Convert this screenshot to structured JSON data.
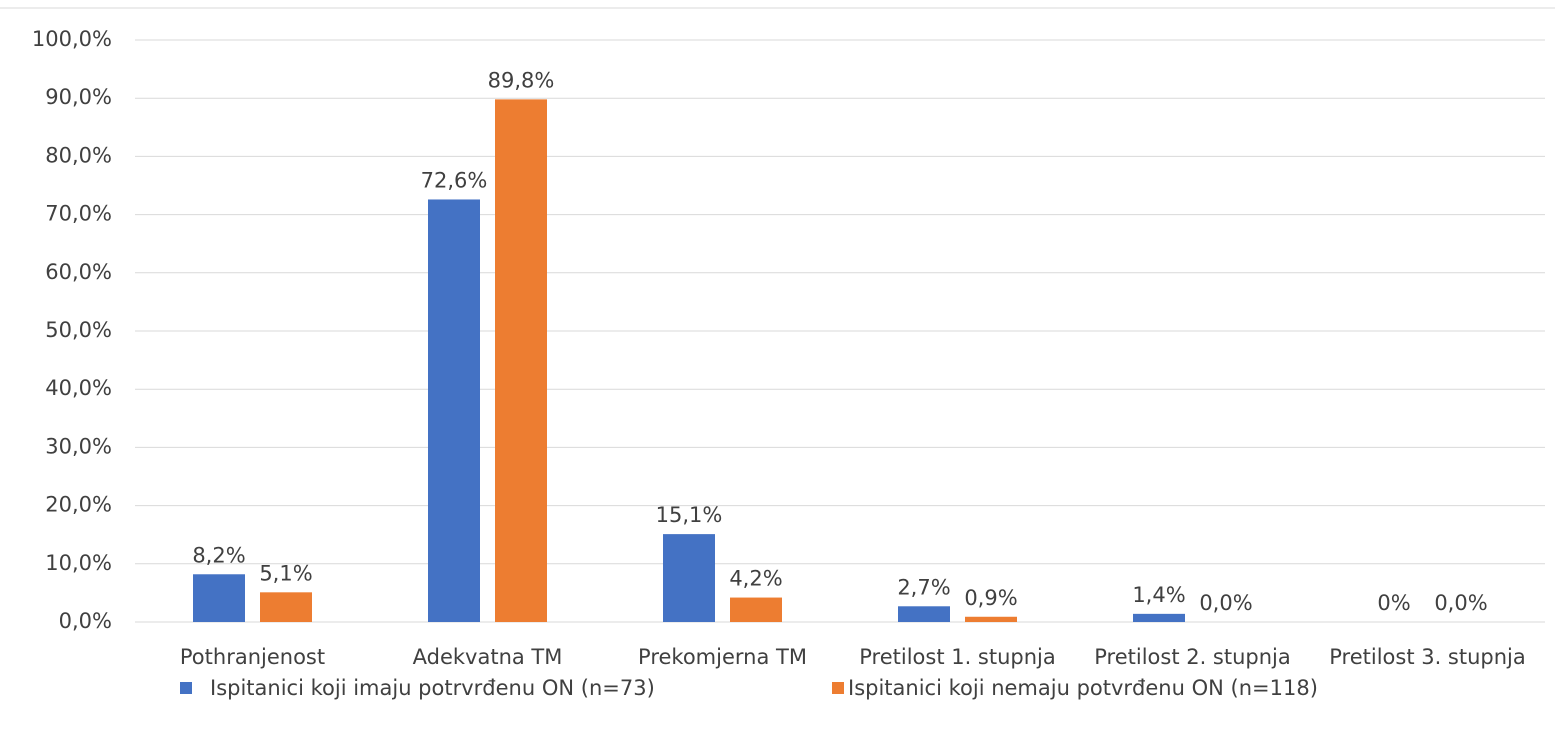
{
  "chart_data": {
    "type": "bar",
    "categories": [
      "Pothranjenost",
      "Adekvatna TM",
      "Prekomjerna TM",
      "Pretilost 1. stupnja",
      "Pretilost 2. stupnja",
      "Pretilost 3. stupnja"
    ],
    "series": [
      {
        "name": "Ispitanici koji imaju potrvrđenu ON (n=73)",
        "color": "#4472c4",
        "values": [
          8.2,
          72.6,
          15.1,
          2.7,
          1.4,
          0
        ],
        "value_labels": [
          "8,2%",
          "72,6%",
          "15,1%",
          "2,7%",
          "1,4%",
          "0%"
        ]
      },
      {
        "name": "Ispitanici koji nemaju potvrđenu ON (n=118)",
        "color": "#ed7d31",
        "values": [
          5.1,
          89.8,
          4.2,
          0.9,
          0,
          0
        ],
        "value_labels": [
          "5,1%",
          "89,8%",
          "4,2%",
          "0,9%",
          "0,0%",
          "0,0%"
        ]
      }
    ],
    "ylim": [
      0,
      100
    ],
    "yticks": [
      {
        "value": 0,
        "label": "0,0%"
      },
      {
        "value": 10,
        "label": "10,0%"
      },
      {
        "value": 20,
        "label": "20,0%"
      },
      {
        "value": 30,
        "label": "30,0%"
      },
      {
        "value": 40,
        "label": "40,0%"
      },
      {
        "value": 50,
        "label": "50,0%"
      },
      {
        "value": 60,
        "label": "60,0%"
      },
      {
        "value": 70,
        "label": "70,0%"
      },
      {
        "value": 80,
        "label": "80,0%"
      },
      {
        "value": 90,
        "label": "90,0%"
      },
      {
        "value": 100,
        "label": "100,0%"
      }
    ],
    "grid": true,
    "legend": "bottom"
  }
}
